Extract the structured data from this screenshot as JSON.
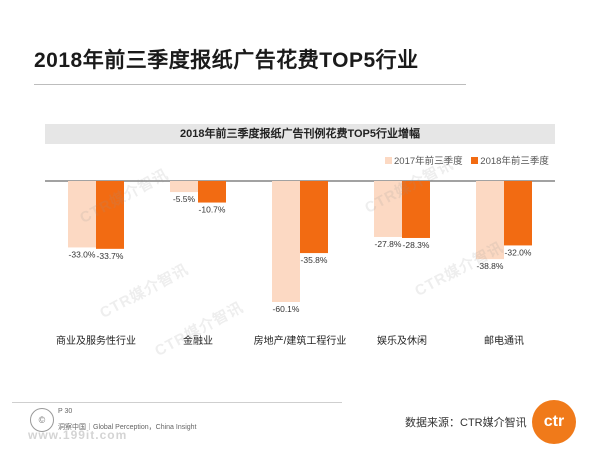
{
  "page": {
    "title": "2018年前三季度报纸广告花费TOP5行业",
    "source": "数据来源：CTR媒介智讯",
    "page_number": "P 30",
    "tagline": "洞察中国｜Global Perception，China Insight",
    "logo_text": "ctr",
    "watermark": "CTR媒介智讯",
    "site_url": "www.199it.com"
  },
  "colors": {
    "series_2017": "#fcd9c3",
    "series_2018": "#f26b12",
    "accent": "#f07a1a"
  },
  "chart_data": {
    "type": "bar",
    "title": "2018年前三季度报纸广告刊例花费TOP5行业增幅",
    "categories": [
      "商业及服务性行业",
      "金融业",
      "房地产/建筑工程行业",
      "娱乐及休闲",
      "邮电通讯"
    ],
    "series": [
      {
        "name": "2017年前三季度",
        "values": [
          -33.0,
          -5.5,
          -60.1,
          -27.8,
          -38.8
        ],
        "labels": [
          "-33.0%",
          "-5.5%",
          "-60.1%",
          "-27.8%",
          "-38.8%"
        ]
      },
      {
        "name": "2018年前三季度",
        "values": [
          -33.7,
          -10.7,
          -35.8,
          -28.3,
          -32.0
        ],
        "labels": [
          "-33.7%",
          "-10.7%",
          "-35.8%",
          "-28.3%",
          "-32.0%"
        ]
      }
    ],
    "ylim": [
      -60.1,
      0
    ],
    "grid": false,
    "legend_position": "top-right"
  }
}
